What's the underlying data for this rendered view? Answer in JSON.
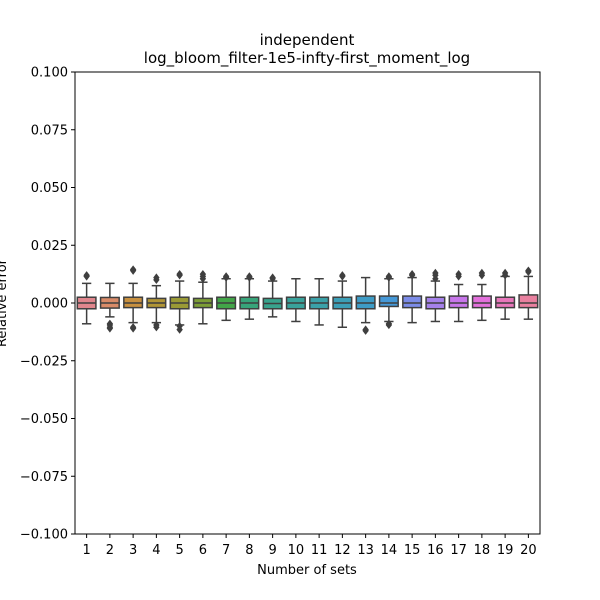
{
  "chart_data": {
    "type": "box",
    "title": "independent",
    "subtitle": "log_bloom_filter-1e5-infty-first_moment_log",
    "xlabel": "Number of sets",
    "ylabel": "Relative error",
    "ylim": [
      -0.1,
      0.1
    ],
    "yticks": [
      "0.100",
      "0.075",
      "0.050",
      "0.025",
      "0.000",
      "−0.025",
      "−0.050",
      "−0.075",
      "−0.100"
    ],
    "ytick_values": [
      0.1,
      0.075,
      0.05,
      0.025,
      0.0,
      -0.025,
      -0.05,
      -0.075,
      -0.1
    ],
    "categories": [
      "1",
      "2",
      "3",
      "4",
      "5",
      "6",
      "7",
      "8",
      "9",
      "10",
      "11",
      "12",
      "13",
      "14",
      "15",
      "16",
      "17",
      "18",
      "19",
      "20"
    ],
    "colors": [
      "#e1868d",
      "#d98b68",
      "#c8903f",
      "#b19636",
      "#9a9a35",
      "#7d9e35",
      "#42a548",
      "#37a57a",
      "#38a38d",
      "#39a29b",
      "#3aa1a8",
      "#3c9fb7",
      "#3e9cc6",
      "#4598d7",
      "#7c8ce8",
      "#a581ea",
      "#c776ea",
      "#e370dc",
      "#e877bb",
      "#e9809f"
    ],
    "boxes": [
      {
        "q1": -0.0025,
        "median": 0.0,
        "q3": 0.0025,
        "whislo": -0.009,
        "whishi": 0.0085,
        "fliers": [
          0.012,
          0.0115
        ]
      },
      {
        "q1": -0.0022,
        "median": 0.0,
        "q3": 0.0024,
        "whislo": -0.006,
        "whishi": 0.0085,
        "fliers": [
          -0.009,
          -0.0095,
          -0.0105,
          -0.011
        ]
      },
      {
        "q1": -0.002,
        "median": 0.0,
        "q3": 0.0025,
        "whislo": -0.0085,
        "whishi": 0.0085,
        "fliers": [
          0.0145,
          0.014,
          -0.0105,
          -0.011
        ]
      },
      {
        "q1": -0.002,
        "median": 0.0,
        "q3": 0.002,
        "whislo": -0.0085,
        "whishi": 0.0075,
        "fliers": [
          0.011,
          0.01,
          -0.0095,
          -0.0105
        ]
      },
      {
        "q1": -0.0025,
        "median": 0.0,
        "q3": 0.0025,
        "whislo": -0.0095,
        "whishi": 0.0095,
        "fliers": [
          0.0125,
          0.012,
          -0.01,
          -0.0115
        ]
      },
      {
        "q1": -0.002,
        "median": 0.0,
        "q3": 0.002,
        "whislo": -0.009,
        "whishi": 0.009,
        "fliers": [
          0.0125,
          0.0115,
          0.0105
        ]
      },
      {
        "q1": -0.0025,
        "median": 0.0,
        "q3": 0.0025,
        "whislo": -0.0075,
        "whishi": 0.0105,
        "fliers": [
          0.0115,
          0.011
        ]
      },
      {
        "q1": -0.0025,
        "median": 0.0,
        "q3": 0.0025,
        "whislo": -0.007,
        "whishi": 0.0105,
        "fliers": [
          0.0115,
          0.011
        ]
      },
      {
        "q1": -0.0025,
        "median": -0.0002,
        "q3": 0.002,
        "whislo": -0.006,
        "whishi": 0.0095,
        "fliers": [
          0.011,
          0.0105
        ]
      },
      {
        "q1": -0.0025,
        "median": 0.0,
        "q3": 0.0025,
        "whislo": -0.008,
        "whishi": 0.0105,
        "fliers": []
      },
      {
        "q1": -0.0025,
        "median": 0.0,
        "q3": 0.0025,
        "whislo": -0.0095,
        "whishi": 0.0105,
        "fliers": []
      },
      {
        "q1": -0.0025,
        "median": 0.0,
        "q3": 0.0025,
        "whislo": -0.0105,
        "whishi": 0.0095,
        "fliers": [
          0.012,
          0.0115
        ]
      },
      {
        "q1": -0.0025,
        "median": 0.0,
        "q3": 0.003,
        "whislo": -0.0085,
        "whishi": 0.011,
        "fliers": [
          -0.0115,
          -0.012
        ]
      },
      {
        "q1": -0.0015,
        "median": 0.0,
        "q3": 0.003,
        "whislo": -0.008,
        "whishi": 0.0105,
        "fliers": [
          0.0115,
          0.011,
          -0.009,
          -0.0095
        ]
      },
      {
        "q1": -0.002,
        "median": 0.0,
        "q3": 0.003,
        "whislo": -0.0085,
        "whishi": 0.011,
        "fliers": [
          0.0125,
          0.012
        ]
      },
      {
        "q1": -0.0025,
        "median": 0.0,
        "q3": 0.0025,
        "whislo": -0.008,
        "whishi": 0.0095,
        "fliers": [
          0.013,
          0.012,
          0.0105
        ]
      },
      {
        "q1": -0.002,
        "median": 0.0,
        "q3": 0.003,
        "whislo": -0.008,
        "whishi": 0.008,
        "fliers": [
          0.0125,
          0.0115
        ]
      },
      {
        "q1": -0.002,
        "median": 0.0,
        "q3": 0.003,
        "whislo": -0.0075,
        "whishi": 0.008,
        "fliers": [
          0.013,
          0.012
        ]
      },
      {
        "q1": -0.002,
        "median": 0.0,
        "q3": 0.0025,
        "whislo": -0.007,
        "whishi": 0.0115,
        "fliers": [
          0.013,
          0.012
        ]
      },
      {
        "q1": -0.002,
        "median": 0.0,
        "q3": 0.0035,
        "whislo": -0.007,
        "whishi": 0.0115,
        "fliers": [
          0.014,
          0.0135
        ]
      }
    ],
    "grid": false,
    "legend": "none"
  }
}
